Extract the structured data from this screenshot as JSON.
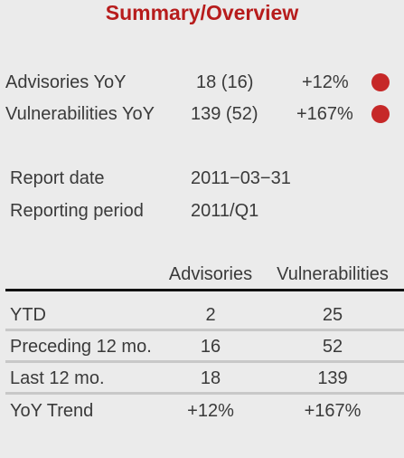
{
  "title": "Summary/Overview",
  "kpis": [
    {
      "label": "Advisories YoY",
      "value": "18 (16)",
      "change": "+12%",
      "status_color": "#c62828"
    },
    {
      "label": "Vulnerabilities YoY",
      "value": "139 (52)",
      "change": "+167%",
      "status_color": "#c62828"
    }
  ],
  "meta": [
    {
      "label": "Report date",
      "value": "2011−03−31"
    },
    {
      "label": "Reporting period",
      "value": "2011/Q1"
    }
  ],
  "table": {
    "columns": [
      "Advisories",
      "Vulnerabilities"
    ],
    "rows": [
      {
        "label": "YTD",
        "values": [
          "2",
          "25"
        ]
      },
      {
        "label": "Preceding 12 mo.",
        "values": [
          "16",
          "52"
        ]
      },
      {
        "label": "Last 12 mo.",
        "values": [
          "18",
          "139"
        ]
      },
      {
        "label": "YoY Trend",
        "values": [
          "+12%",
          "+167%"
        ]
      }
    ]
  }
}
